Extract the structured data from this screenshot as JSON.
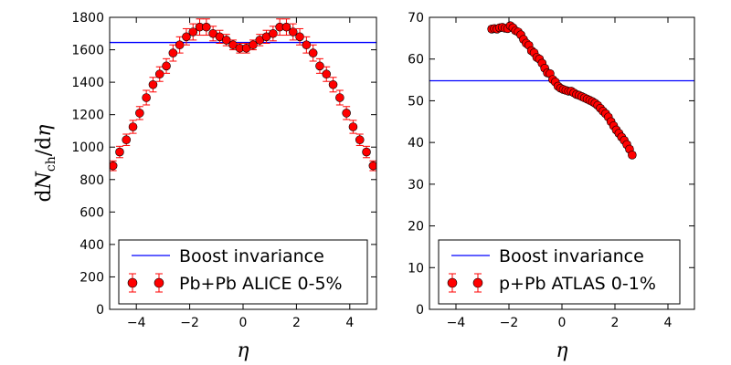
{
  "chart_data": [
    {
      "type": "scatter",
      "xlabel": "η",
      "ylabel": "dN_ch/dη",
      "xlim": [
        -5,
        5
      ],
      "ylim": [
        0,
        1800
      ],
      "xticks": [
        -4,
        -2,
        0,
        2,
        4
      ],
      "yticks": [
        0,
        200,
        400,
        600,
        800,
        1000,
        1200,
        1400,
        1600,
        1800
      ],
      "xtick_labels": [
        "−4",
        "−2",
        "0",
        "2",
        "4"
      ],
      "ytick_labels": [
        "0",
        "200",
        "400",
        "600",
        "800",
        "1000",
        "1200",
        "1400",
        "1600",
        "1800"
      ],
      "grid": false,
      "legend_position": "lower-center",
      "series": [
        {
          "name": "Boost invariance",
          "kind": "hline",
          "color": "#0000ff",
          "y": 1645
        },
        {
          "name": "Pb+Pb ALICE 0-5%",
          "kind": "errorbar",
          "color": "#ff0000",
          "x": [
            -4.875,
            -4.625,
            -4.375,
            -4.125,
            -3.875,
            -3.625,
            -3.375,
            -3.125,
            -2.875,
            -2.625,
            -2.375,
            -2.125,
            -1.875,
            -1.625,
            -1.375,
            -1.125,
            -0.875,
            -0.625,
            -0.375,
            -0.125,
            0.125,
            0.375,
            0.625,
            0.875,
            1.125,
            1.375,
            1.625,
            1.875,
            2.125,
            2.375,
            2.625,
            2.875,
            3.125,
            3.375,
            3.625,
            3.875,
            4.125,
            4.375,
            4.625,
            4.875
          ],
          "y": [
            885,
            970,
            1045,
            1125,
            1210,
            1305,
            1385,
            1450,
            1500,
            1580,
            1630,
            1680,
            1710,
            1740,
            1740,
            1700,
            1680,
            1660,
            1630,
            1610,
            1610,
            1630,
            1660,
            1680,
            1700,
            1740,
            1740,
            1710,
            1680,
            1630,
            1580,
            1500,
            1450,
            1385,
            1305,
            1210,
            1125,
            1045,
            970,
            885
          ],
          "yerr": [
            30,
            35,
            35,
            40,
            40,
            45,
            45,
            45,
            45,
            50,
            50,
            50,
            50,
            50,
            50,
            45,
            40,
            35,
            30,
            30,
            30,
            30,
            35,
            40,
            45,
            50,
            50,
            50,
            50,
            50,
            50,
            45,
            45,
            45,
            45,
            40,
            40,
            35,
            35,
            30
          ]
        }
      ]
    },
    {
      "type": "scatter",
      "xlabel": "η",
      "ylabel": "",
      "xlim": [
        -5,
        5
      ],
      "ylim": [
        0,
        70
      ],
      "xticks": [
        -4,
        -2,
        0,
        2,
        4
      ],
      "yticks": [
        0,
        10,
        20,
        30,
        40,
        50,
        60,
        70
      ],
      "xtick_labels": [
        "−4",
        "−2",
        "0",
        "2",
        "4"
      ],
      "ytick_labels": [
        "0",
        "10",
        "20",
        "30",
        "40",
        "50",
        "60",
        "70"
      ],
      "grid": false,
      "legend_position": "lower-center",
      "series": [
        {
          "name": "Boost invariance",
          "kind": "hline",
          "color": "#0000ff",
          "y": 54.8
        },
        {
          "name": "p+Pb ATLAS 0-1%",
          "kind": "errorbar",
          "color": "#ff0000",
          "x": [
            -2.65,
            -2.55,
            -2.45,
            -2.35,
            -2.25,
            -2.15,
            -2.05,
            -1.95,
            -1.85,
            -1.75,
            -1.65,
            -1.55,
            -1.45,
            -1.35,
            -1.25,
            -1.15,
            -1.05,
            -0.95,
            -0.85,
            -0.75,
            -0.65,
            -0.55,
            -0.45,
            -0.35,
            -0.25,
            -0.15,
            -0.05,
            0.05,
            0.15,
            0.25,
            0.35,
            0.45,
            0.55,
            0.65,
            0.75,
            0.85,
            0.95,
            1.05,
            1.15,
            1.25,
            1.35,
            1.45,
            1.55,
            1.65,
            1.75,
            1.85,
            1.95,
            2.05,
            2.15,
            2.25,
            2.35,
            2.45,
            2.55,
            2.65
          ],
          "y": [
            67.2,
            67.3,
            67.2,
            67.5,
            67.6,
            67.4,
            67.3,
            68.0,
            67.5,
            66.8,
            66.5,
            65.8,
            64.7,
            63.8,
            63.3,
            62.0,
            61.5,
            60.4,
            60.0,
            59.0,
            57.8,
            56.7,
            56.5,
            55.1,
            54.5,
            53.5,
            53.0,
            52.7,
            52.5,
            52.3,
            52.3,
            51.9,
            51.5,
            51.3,
            51.0,
            50.7,
            50.4,
            50.1,
            49.8,
            49.4,
            48.9,
            48.2,
            47.5,
            46.9,
            46.1,
            45.0,
            44.0,
            43.0,
            42.2,
            41.3,
            40.5,
            39.5,
            38.4,
            37.0
          ],
          "yerr": [
            0.6,
            0.6,
            0.6,
            0.6,
            0.6,
            0.6,
            0.6,
            0.6,
            0.6,
            0.6,
            0.6,
            0.6,
            0.6,
            0.6,
            0.6,
            0.6,
            0.6,
            0.6,
            0.6,
            0.6,
            0.6,
            0.6,
            0.6,
            0.6,
            0.6,
            0.6,
            0.6,
            0.6,
            0.6,
            0.6,
            0.6,
            0.6,
            0.6,
            0.6,
            0.6,
            0.6,
            0.6,
            0.6,
            0.6,
            0.6,
            0.6,
            0.6,
            0.6,
            0.6,
            0.6,
            0.6,
            0.6,
            0.6,
            0.6,
            0.6,
            0.6,
            0.6,
            0.6,
            0.6
          ]
        }
      ]
    }
  ]
}
